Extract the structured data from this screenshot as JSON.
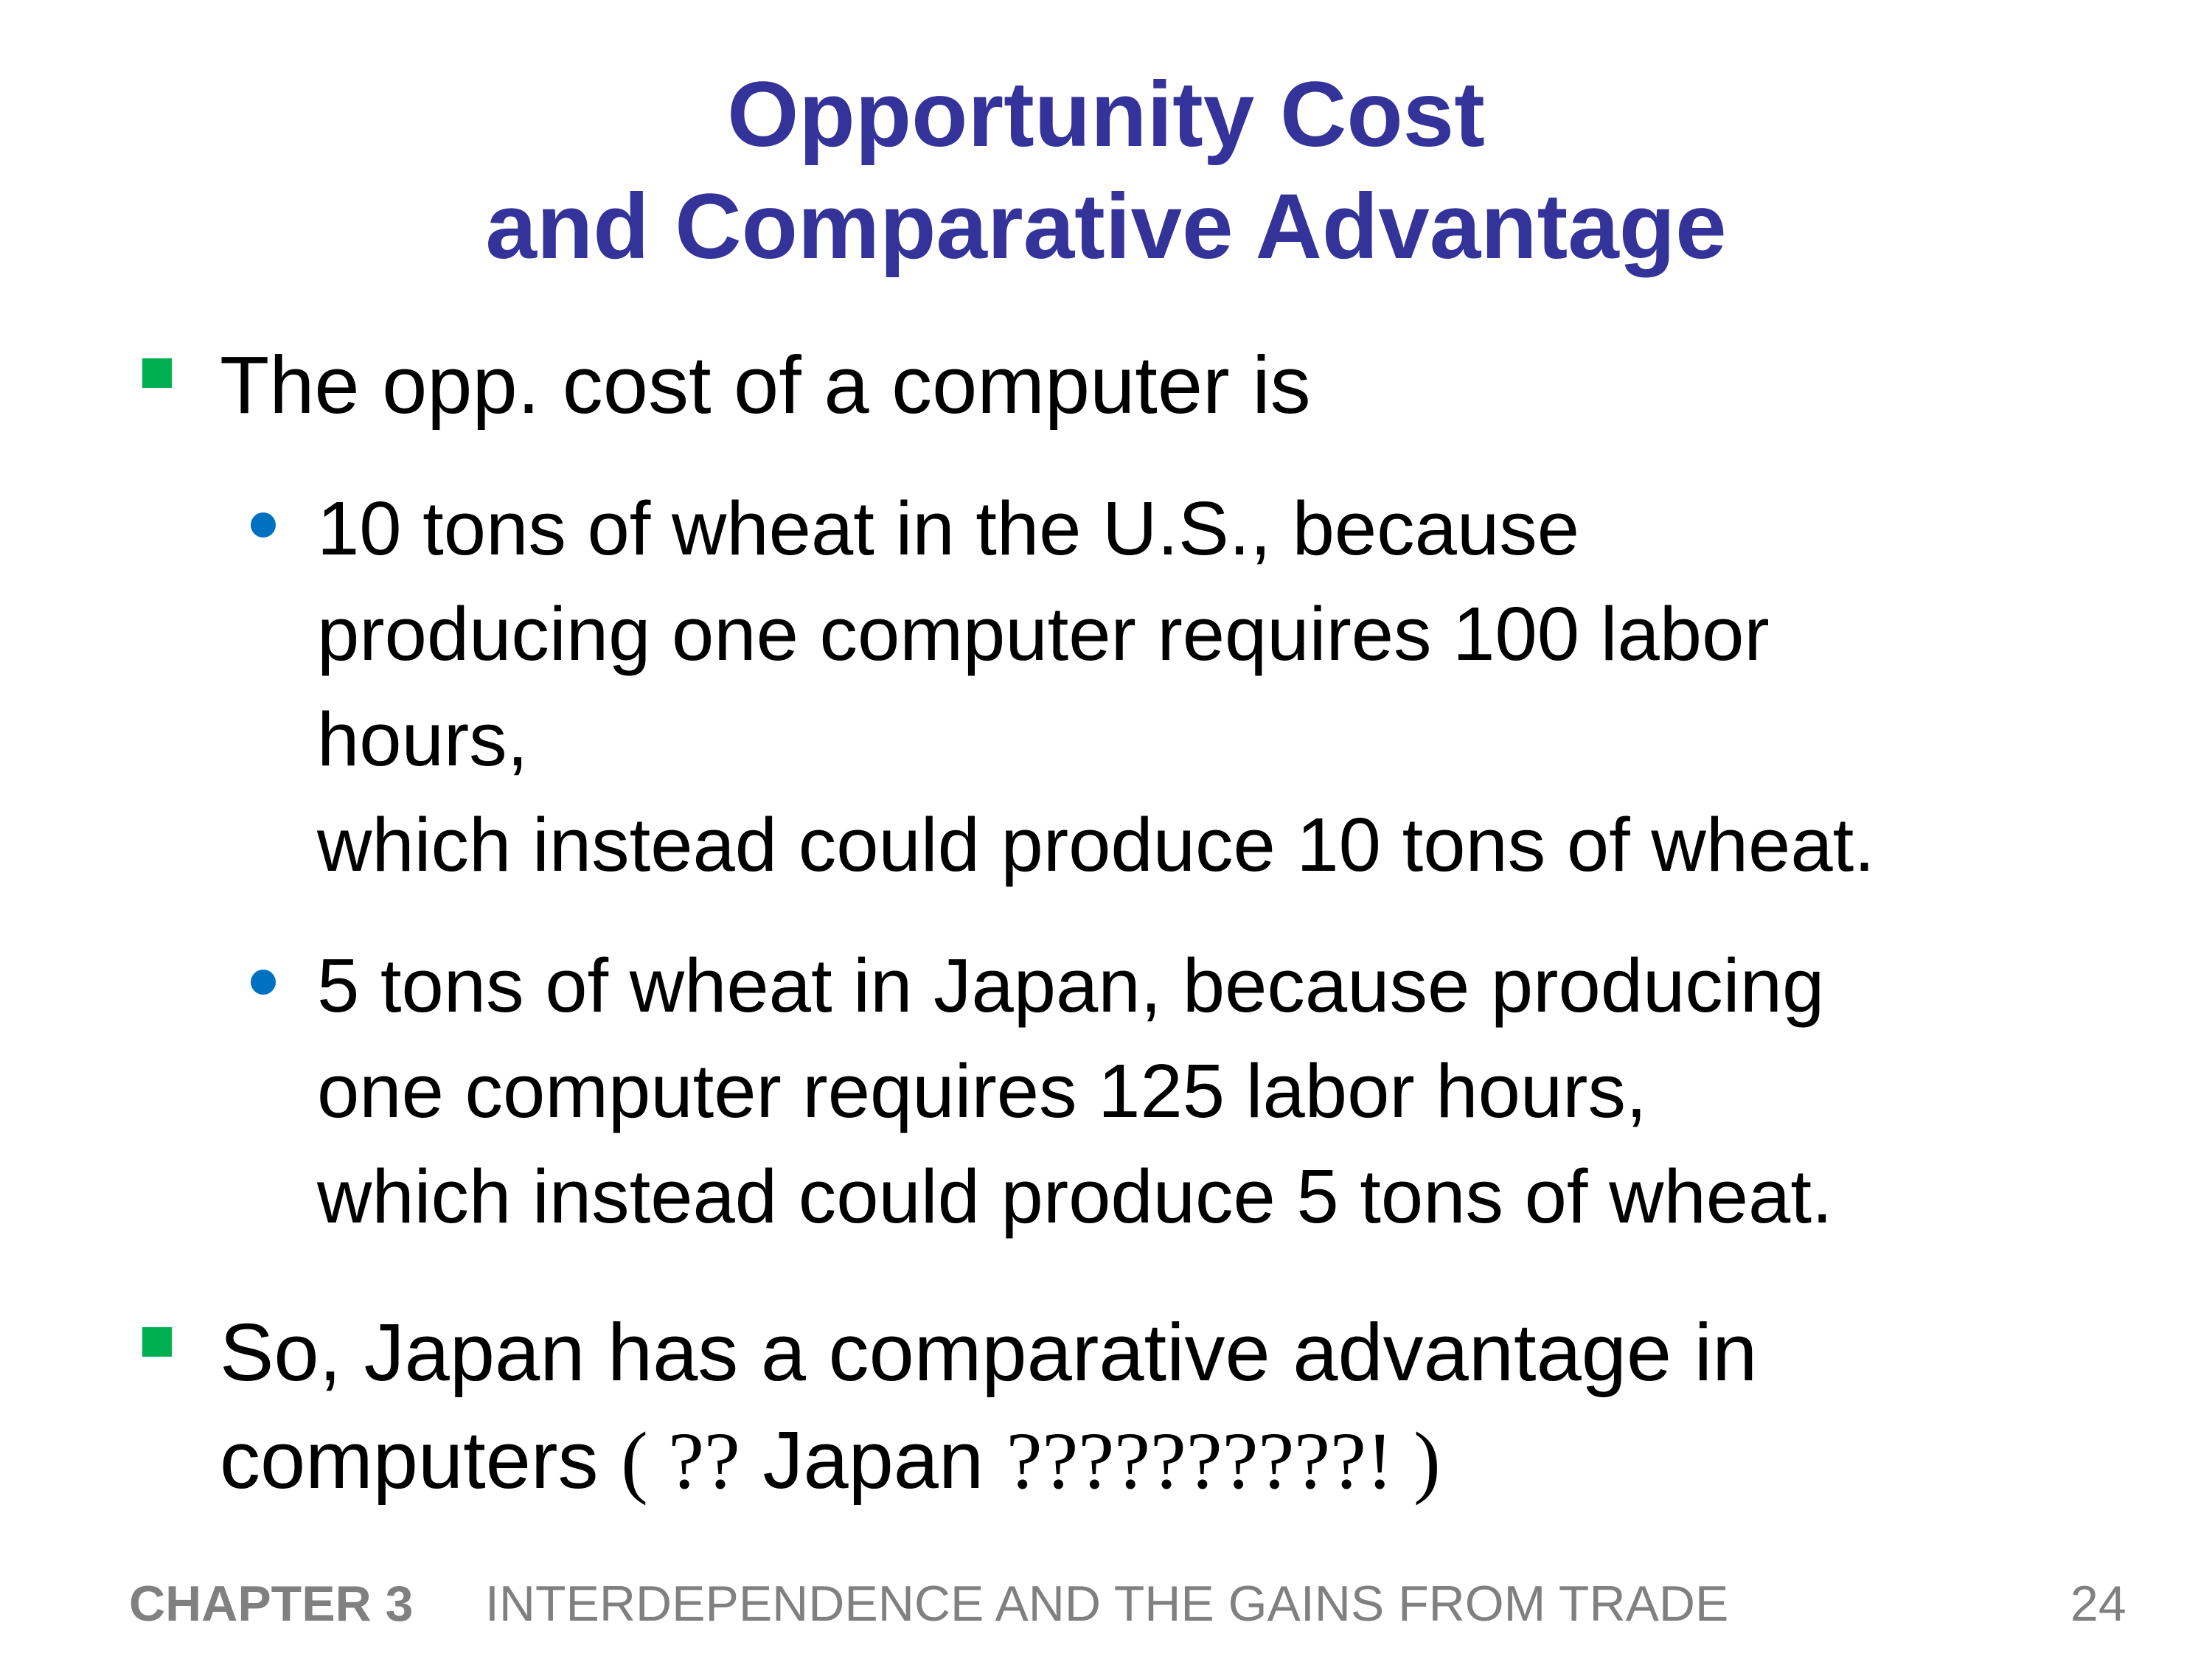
{
  "title": {
    "line1": "Opportunity Cost",
    "line2": "and Comparative Advantage"
  },
  "bullets": [
    {
      "text": "The opp. cost of a computer is",
      "sub": [
        {
          "lines": [
            "10 tons of wheat in the U.S., because",
            "producing one computer requires 100 labor",
            "hours,",
            "which instead could produce 10 tons of wheat."
          ]
        },
        {
          "lines": [
            "5 tons of wheat in Japan, because producing",
            "one computer requires 125 labor hours,",
            "which instead could produce 5 tons of wheat."
          ]
        }
      ]
    },
    {
      "line1": "So, Japan has a comparative advantage in",
      "line2_start": "computers",
      "line2_paren_open": "( ??",
      "line2_japan": "Japan",
      "line2_paren_close": "??????????! )"
    }
  ],
  "footer": {
    "chapter": "CHAPTER 3",
    "title": "INTERDEPENDENCE AND THE GAINS FROM TRADE",
    "page": "24"
  },
  "colors": {
    "title": "#333399",
    "level1_bullet": "#00b050",
    "level2_bullet": "#0070c0",
    "footer_text": "#808080"
  },
  "icons": {
    "level1_bullet": "green-square-bullet",
    "level2_bullet": "blue-dot-bullet"
  }
}
